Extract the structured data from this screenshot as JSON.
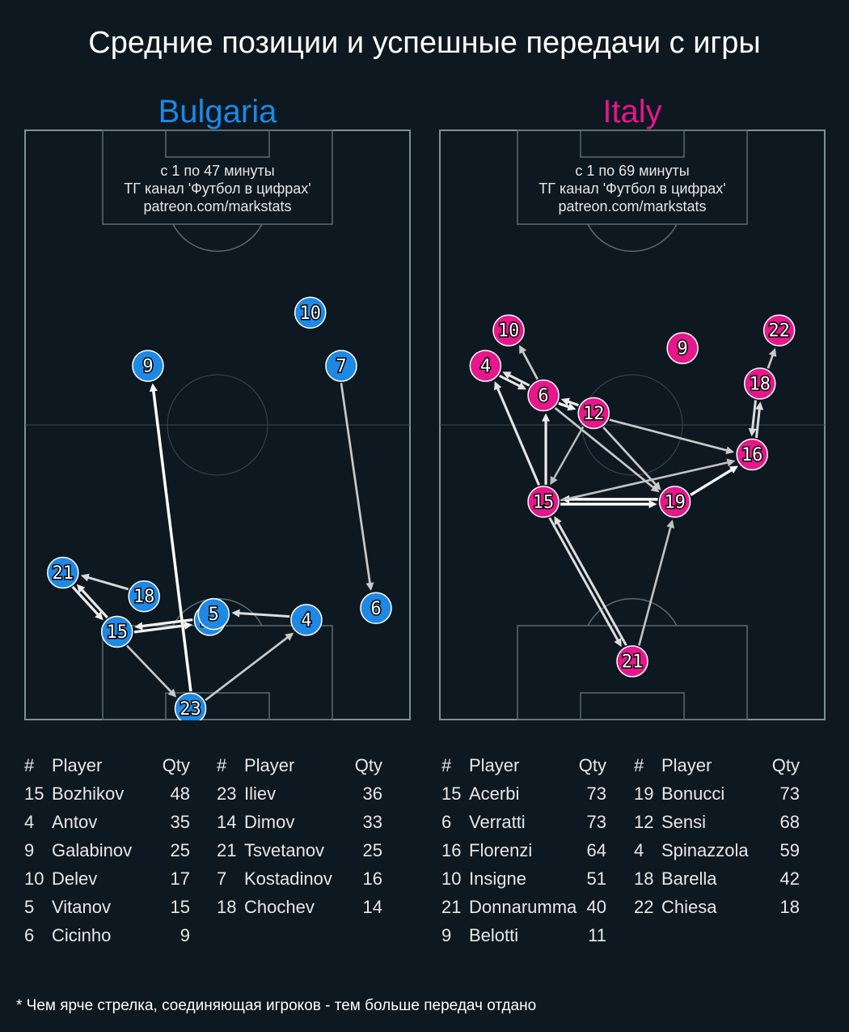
{
  "title": "Средние позиции и успешные передачи с игры",
  "footnote": "* Чем ярче стрелка, соединяющая игроков - тем больше передач отдано",
  "table_headers": {
    "num": "#",
    "player": "Player",
    "qty": "Qty"
  },
  "chart_data": [
    {
      "type": "scatter",
      "team": "Bulgaria",
      "team_color": "#1e88e5",
      "info_lines": [
        "с 1 по 47 минуты",
        "ТГ канал 'Футбол в цифрах'",
        "patreon.com/markstats"
      ],
      "players": [
        {
          "num": "9",
          "x": 0.32,
          "y": 0.6
        },
        {
          "num": "10",
          "x": 0.74,
          "y": 0.69
        },
        {
          "num": "7",
          "x": 0.82,
          "y": 0.6
        },
        {
          "num": "21",
          "x": 0.1,
          "y": 0.25
        },
        {
          "num": "18",
          "x": 0.31,
          "y": 0.21
        },
        {
          "num": "14",
          "x": 0.48,
          "y": 0.17
        },
        {
          "num": "5",
          "x": 0.49,
          "y": 0.18
        },
        {
          "num": "4",
          "x": 0.73,
          "y": 0.17
        },
        {
          "num": "6",
          "x": 0.91,
          "y": 0.19
        },
        {
          "num": "15",
          "x": 0.24,
          "y": 0.15
        },
        {
          "num": "23",
          "x": 0.43,
          "y": 0.02
        }
      ],
      "passes": [
        {
          "from": "23",
          "to": "9",
          "alpha": 1.0
        },
        {
          "from": "15",
          "to": "14",
          "alpha": 0.9
        },
        {
          "from": "14",
          "to": "15",
          "alpha": 0.9
        },
        {
          "from": "21",
          "to": "15",
          "alpha": 0.85
        },
        {
          "from": "15",
          "to": "21",
          "alpha": 0.85
        },
        {
          "from": "18",
          "to": "21",
          "alpha": 0.7
        },
        {
          "from": "4",
          "to": "5",
          "alpha": 0.75
        },
        {
          "from": "15",
          "to": "23",
          "alpha": 0.6
        },
        {
          "from": "23",
          "to": "4",
          "alpha": 0.6
        },
        {
          "from": "7",
          "to": "6",
          "alpha": 0.6
        }
      ],
      "table": [
        [
          {
            "num": "15",
            "name": "Bozhikov",
            "qty": "48"
          },
          {
            "num": "4",
            "name": "Antov",
            "qty": "35"
          },
          {
            "num": "9",
            "name": "Galabinov",
            "qty": "25"
          },
          {
            "num": "10",
            "name": "Delev",
            "qty": "17"
          },
          {
            "num": "5",
            "name": "Vitanov",
            "qty": "15"
          },
          {
            "num": "6",
            "name": "Cicinho",
            "qty": "9"
          }
        ],
        [
          {
            "num": "23",
            "name": "Iliev",
            "qty": "36"
          },
          {
            "num": "14",
            "name": "Dimov",
            "qty": "33"
          },
          {
            "num": "21",
            "name": "Tsvetanov",
            "qty": "25"
          },
          {
            "num": "7",
            "name": "Kostadinov",
            "qty": "16"
          },
          {
            "num": "18",
            "name": "Chochev",
            "qty": "14"
          }
        ]
      ]
    },
    {
      "type": "scatter",
      "team": "Italy",
      "team_color": "#e6168b",
      "info_lines": [
        "с 1 по 69 минуты",
        "ТГ канал 'Футбол в цифрах'",
        "patreon.com/markstats"
      ],
      "players": [
        {
          "num": "10",
          "x": 0.18,
          "y": 0.66
        },
        {
          "num": "22",
          "x": 0.88,
          "y": 0.66
        },
        {
          "num": "9",
          "x": 0.63,
          "y": 0.63
        },
        {
          "num": "4",
          "x": 0.12,
          "y": 0.6
        },
        {
          "num": "18",
          "x": 0.83,
          "y": 0.57
        },
        {
          "num": "6",
          "x": 0.27,
          "y": 0.55
        },
        {
          "num": "12",
          "x": 0.4,
          "y": 0.52
        },
        {
          "num": "16",
          "x": 0.81,
          "y": 0.45
        },
        {
          "num": "15",
          "x": 0.27,
          "y": 0.37
        },
        {
          "num": "19",
          "x": 0.61,
          "y": 0.37
        },
        {
          "num": "21",
          "x": 0.5,
          "y": 0.1
        }
      ],
      "passes": [
        {
          "from": "15",
          "to": "19",
          "alpha": 1.0
        },
        {
          "from": "19",
          "to": "15",
          "alpha": 1.0
        },
        {
          "from": "19",
          "to": "16",
          "alpha": 0.95
        },
        {
          "from": "6",
          "to": "12",
          "alpha": 0.95
        },
        {
          "from": "12",
          "to": "6",
          "alpha": 0.85
        },
        {
          "from": "4",
          "to": "6",
          "alpha": 0.8
        },
        {
          "from": "6",
          "to": "4",
          "alpha": 0.8
        },
        {
          "from": "15",
          "to": "6",
          "alpha": 0.85
        },
        {
          "from": "15",
          "to": "4",
          "alpha": 0.8
        },
        {
          "from": "21",
          "to": "15",
          "alpha": 0.75
        },
        {
          "from": "15",
          "to": "21",
          "alpha": 0.75
        },
        {
          "from": "16",
          "to": "18",
          "alpha": 0.75
        },
        {
          "from": "18",
          "to": "16",
          "alpha": 0.75
        },
        {
          "from": "18",
          "to": "22",
          "alpha": 0.6
        },
        {
          "from": "6",
          "to": "10",
          "alpha": 0.6
        },
        {
          "from": "12",
          "to": "16",
          "alpha": 0.6
        },
        {
          "from": "12",
          "to": "19",
          "alpha": 0.6
        },
        {
          "from": "6",
          "to": "19",
          "alpha": 0.6
        },
        {
          "from": "15",
          "to": "16",
          "alpha": 0.55
        },
        {
          "from": "21",
          "to": "19",
          "alpha": 0.55
        },
        {
          "from": "12",
          "to": "15",
          "alpha": 0.5
        }
      ],
      "table": [
        [
          {
            "num": "15",
            "name": "Acerbi",
            "qty": "73"
          },
          {
            "num": "6",
            "name": "Verratti",
            "qty": "73"
          },
          {
            "num": "16",
            "name": "Florenzi",
            "qty": "64"
          },
          {
            "num": "10",
            "name": "Insigne",
            "qty": "51"
          },
          {
            "num": "21",
            "name": "Donnarumma",
            "qty": "40"
          },
          {
            "num": "9",
            "name": "Belotti",
            "qty": "11"
          }
        ],
        [
          {
            "num": "19",
            "name": "Bonucci",
            "qty": "73"
          },
          {
            "num": "12",
            "name": "Sensi",
            "qty": "68"
          },
          {
            "num": "4",
            "name": "Spinazzola",
            "qty": "59"
          },
          {
            "num": "18",
            "name": "Barella",
            "qty": "42"
          },
          {
            "num": "22",
            "name": "Chiesa",
            "qty": "18"
          }
        ]
      ]
    }
  ]
}
